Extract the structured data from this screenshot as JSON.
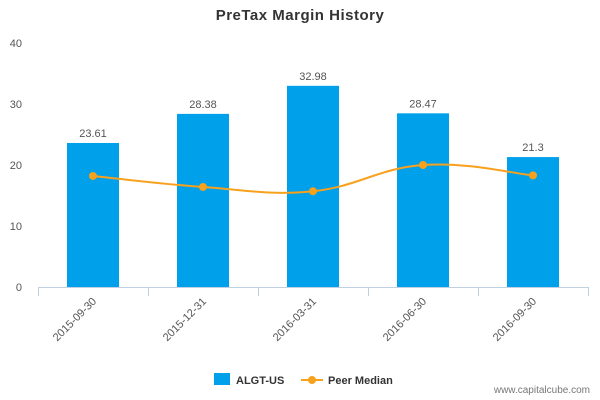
{
  "chart_data": {
    "type": "bar",
    "title": "PreTax Margin History",
    "categories": [
      "2015-09-30",
      "2015-12-31",
      "2016-03-31",
      "2016-06-30",
      "2016-09-30"
    ],
    "series": [
      {
        "name": "ALGT-US",
        "type": "bar",
        "values": [
          23.61,
          28.38,
          32.98,
          28.47,
          21.3
        ],
        "labels": [
          "23.61",
          "28.38",
          "32.98",
          "28.47",
          "21.3"
        ],
        "color": "#00a0ea"
      },
      {
        "name": "Peer Median",
        "type": "line",
        "values": [
          18.2,
          16.4,
          15.7,
          20.0,
          18.3
        ],
        "color": "#f7a11c"
      }
    ],
    "yticks": [
      0,
      10,
      20,
      30,
      40
    ],
    "ylim": [
      0,
      40
    ],
    "xlabel": "",
    "ylabel": "",
    "legend_position": "bottom-center",
    "grid": false
  },
  "watermark": "www.capitalcube.com"
}
